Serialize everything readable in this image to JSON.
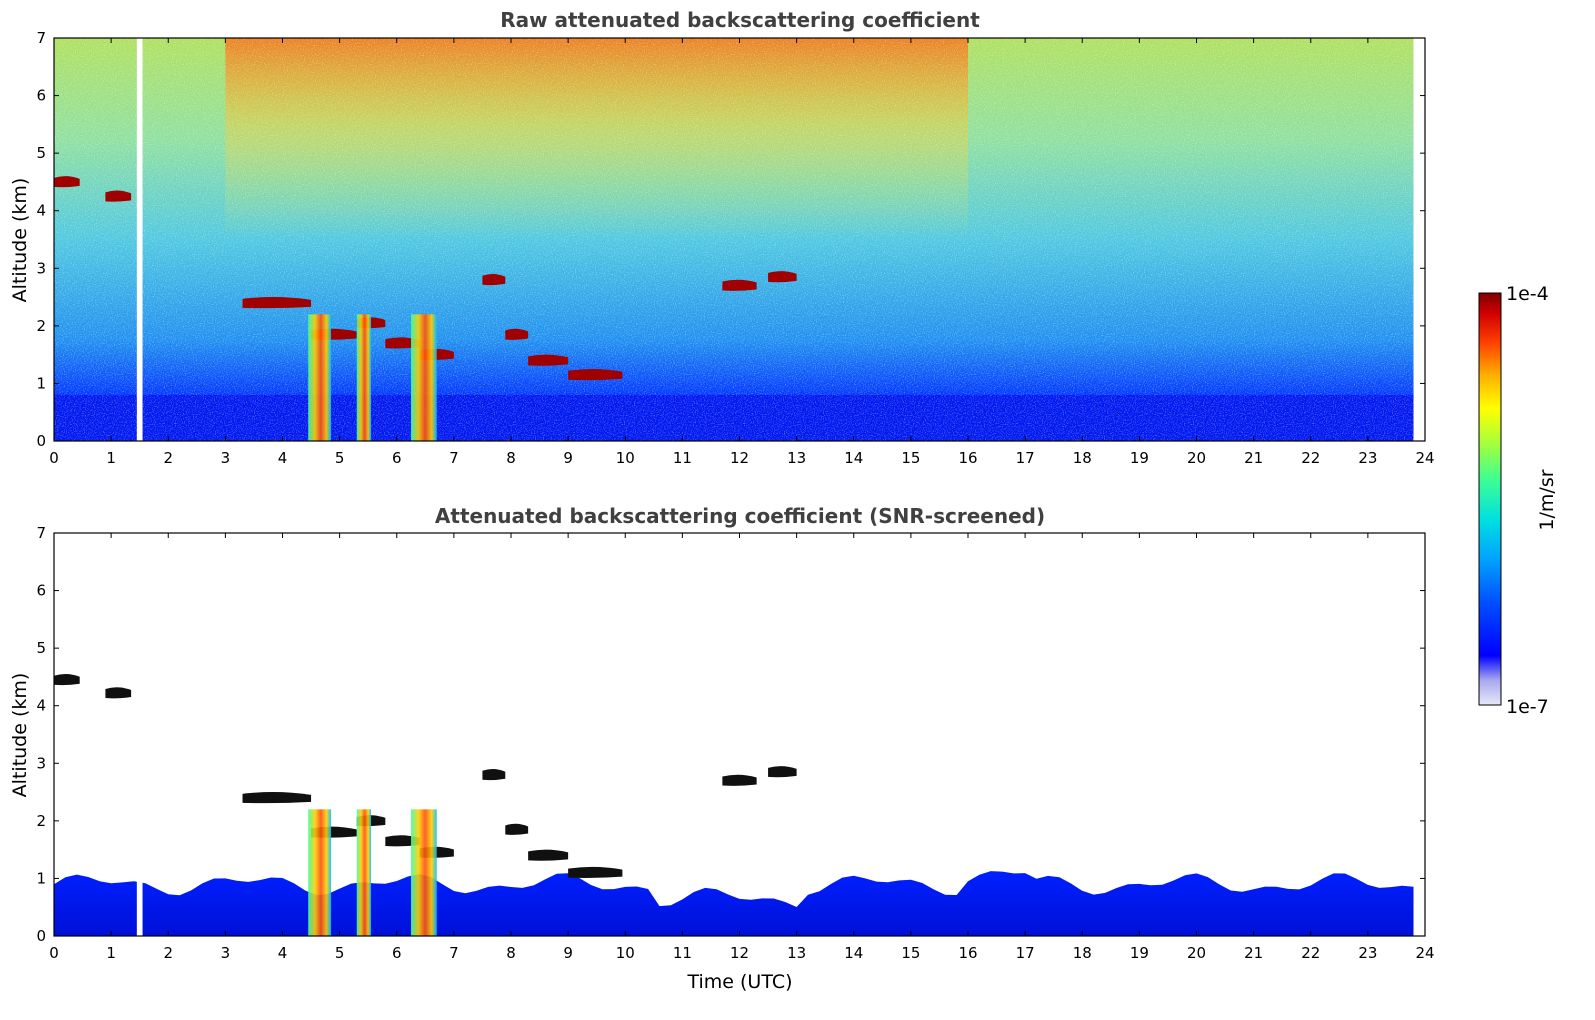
{
  "chart_data": [
    {
      "type": "heatmap",
      "title": "Raw attenuated backscattering coefficient",
      "xlabel": "",
      "ylabel": "Altitude (km)",
      "xlim": [
        0,
        24
      ],
      "ylim": [
        0,
        7
      ],
      "x_ticks": [
        "0",
        "1",
        "2",
        "3",
        "4",
        "5",
        "6",
        "7",
        "8",
        "9",
        "10",
        "11",
        "12",
        "13",
        "14",
        "15",
        "16",
        "17",
        "18",
        "19",
        "20",
        "21",
        "22",
        "23",
        "24"
      ],
      "y_ticks": [
        "0",
        "1",
        "2",
        "3",
        "4",
        "5",
        "6",
        "7"
      ],
      "data_end_time": 23.8,
      "data_gap": [
        1.45,
        1.55
      ],
      "screened": false,
      "cloud_layers": [
        {
          "t0": 0.0,
          "t1": 0.45,
          "alt": 4.5
        },
        {
          "t0": 0.9,
          "t1": 1.35,
          "alt": 4.25
        },
        {
          "t0": 3.3,
          "t1": 4.5,
          "alt": 2.4
        },
        {
          "t0": 4.5,
          "t1": 5.3,
          "alt": 1.85
        },
        {
          "t0": 5.3,
          "t1": 5.8,
          "alt": 2.05
        },
        {
          "t0": 5.8,
          "t1": 6.4,
          "alt": 1.7
        },
        {
          "t0": 6.4,
          "t1": 7.0,
          "alt": 1.5
        },
        {
          "t0": 7.5,
          "t1": 7.9,
          "alt": 2.8
        },
        {
          "t0": 7.9,
          "t1": 8.3,
          "alt": 1.85
        },
        {
          "t0": 8.3,
          "t1": 9.0,
          "alt": 1.4
        },
        {
          "t0": 9.0,
          "t1": 9.95,
          "alt": 1.15
        },
        {
          "t0": 11.7,
          "t1": 12.3,
          "alt": 2.7
        },
        {
          "t0": 12.5,
          "t1": 13.0,
          "alt": 2.85
        }
      ],
      "precipitation_shafts": [
        {
          "t0": 4.45,
          "t1": 4.85
        },
        {
          "t0": 5.3,
          "t1": 5.55
        },
        {
          "t0": 6.25,
          "t1": 6.7
        }
      ]
    },
    {
      "type": "heatmap",
      "title": "Attenuated backscattering coefficient (SNR-screened)",
      "xlabel": "Time (UTC)",
      "ylabel": "Altitude (km)",
      "xlim": [
        0,
        24
      ],
      "ylim": [
        0,
        7
      ],
      "x_ticks": [
        "0",
        "1",
        "2",
        "3",
        "4",
        "5",
        "6",
        "7",
        "8",
        "9",
        "10",
        "11",
        "12",
        "13",
        "14",
        "15",
        "16",
        "17",
        "18",
        "19",
        "20",
        "21",
        "22",
        "23",
        "24"
      ],
      "y_ticks": [
        "0",
        "1",
        "2",
        "3",
        "4",
        "5",
        "6",
        "7"
      ],
      "data_end_time": 23.8,
      "data_gap": [
        1.45,
        1.55
      ],
      "screened": true,
      "cloud_layers": [
        {
          "t0": 0.0,
          "t1": 0.45,
          "alt": 4.45
        },
        {
          "t0": 0.9,
          "t1": 1.35,
          "alt": 4.22
        },
        {
          "t0": 3.3,
          "t1": 4.5,
          "alt": 2.4
        },
        {
          "t0": 4.5,
          "t1": 5.3,
          "alt": 1.8
        },
        {
          "t0": 5.3,
          "t1": 5.8,
          "alt": 2.0
        },
        {
          "t0": 5.8,
          "t1": 6.4,
          "alt": 1.65
        },
        {
          "t0": 6.4,
          "t1": 7.0,
          "alt": 1.45
        },
        {
          "t0": 7.5,
          "t1": 7.9,
          "alt": 2.8
        },
        {
          "t0": 7.9,
          "t1": 8.3,
          "alt": 1.85
        },
        {
          "t0": 8.3,
          "t1": 9.0,
          "alt": 1.4
        },
        {
          "t0": 9.0,
          "t1": 9.95,
          "alt": 1.1
        },
        {
          "t0": 11.7,
          "t1": 12.3,
          "alt": 2.7
        },
        {
          "t0": 12.5,
          "t1": 13.0,
          "alt": 2.85
        }
      ],
      "precipitation_shafts": [
        {
          "t0": 4.45,
          "t1": 4.85
        },
        {
          "t0": 5.3,
          "t1": 5.55
        },
        {
          "t0": 6.25,
          "t1": 6.7
        }
      ],
      "boundary_layer_top_km": 0.9
    }
  ],
  "colorbar": {
    "label": "1/m/sr",
    "max_label": "1e-4",
    "min_label": "1e-7",
    "scale": "log",
    "colormap": "jet",
    "colors": [
      "#e8e8f8",
      "#a8a8f0",
      "#0000ff",
      "#0050ff",
      "#00a0ff",
      "#00e0e0",
      "#40ff90",
      "#a0ff40",
      "#ffff00",
      "#ffb000",
      "#ff4000",
      "#d00000",
      "#800000"
    ]
  }
}
